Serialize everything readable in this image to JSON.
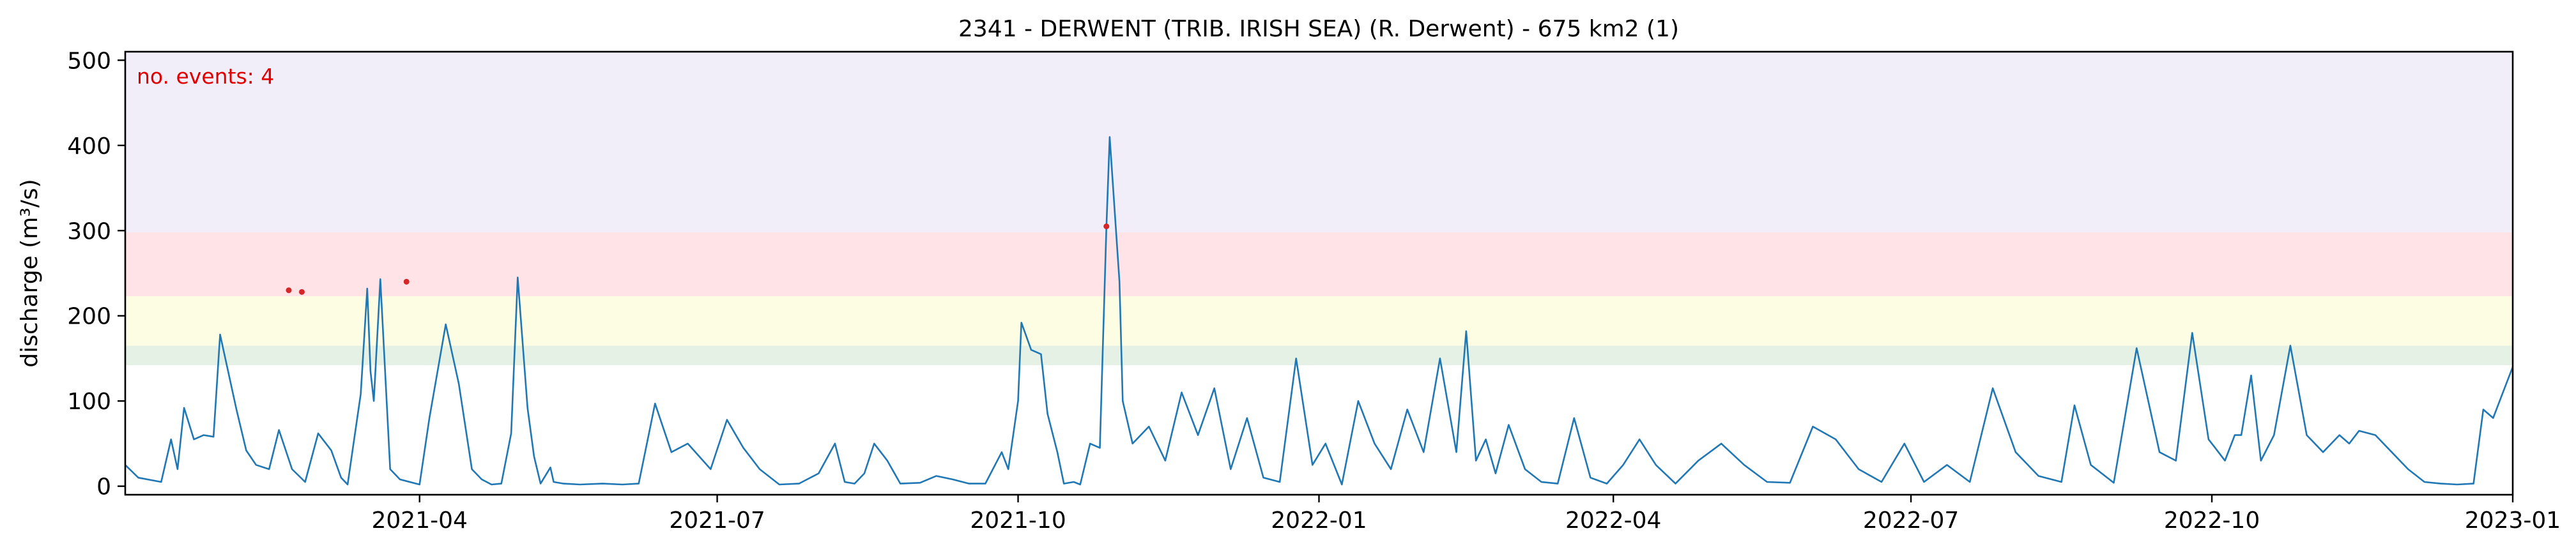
{
  "chart_data": {
    "type": "line",
    "title": "2341 - DERWENT (TRIB. IRISH SEA) (R. Derwent) - 675 km2 (1)",
    "xlabel": "",
    "ylabel": "discharge (m³/s)",
    "annotation": "no. events: 4",
    "xlim": [
      "2021-01-01",
      "2023-01-01"
    ],
    "ylim": [
      -10,
      510
    ],
    "x_ticks": [
      "2021-04",
      "2021-07",
      "2021-10",
      "2022-01",
      "2022-04",
      "2022-07",
      "2022-10",
      "2023-01"
    ],
    "y_ticks": [
      0,
      100,
      200,
      300,
      400,
      500
    ],
    "grid": false,
    "threshold_bands": [
      {
        "from": 142,
        "to": 165,
        "color": "#e4f1e4"
      },
      {
        "from": 165,
        "to": 223,
        "color": "#fdfde3"
      },
      {
        "from": 223,
        "to": 298,
        "color": "#ffe3e6"
      },
      {
        "from": 298,
        "to": 510,
        "color": "#f1eef9"
      }
    ],
    "line_color": "#1f77b4",
    "event_color": "#d62728",
    "series": [
      {
        "x": [
          "2021-01-01",
          "2021-01-05",
          "2021-01-12",
          "2021-01-15",
          "2021-01-17",
          "2021-01-19",
          "2021-01-22",
          "2021-01-25",
          "2021-01-28",
          "2021-01-30",
          "2021-02-04",
          "2021-02-07",
          "2021-02-10",
          "2021-02-14",
          "2021-02-17",
          "2021-02-21",
          "2021-02-25",
          "2021-03-01",
          "2021-03-05",
          "2021-03-08",
          "2021-03-10",
          "2021-03-12",
          "2021-03-14",
          "2021-03-16",
          "2021-03-17",
          "2021-03-18",
          "2021-03-20",
          "2021-03-23",
          "2021-03-26",
          "2021-04-01",
          "2021-04-04",
          "2021-04-09",
          "2021-04-13",
          "2021-04-17",
          "2021-04-20",
          "2021-04-23",
          "2021-04-26",
          "2021-04-29",
          "2021-05-01",
          "2021-05-04",
          "2021-05-06",
          "2021-05-08",
          "2021-05-11",
          "2021-05-12",
          "2021-05-15",
          "2021-05-20",
          "2021-05-27",
          "2021-06-02",
          "2021-06-07",
          "2021-06-12",
          "2021-06-17",
          "2021-06-22",
          "2021-06-29",
          "2021-07-04",
          "2021-07-09",
          "2021-07-14",
          "2021-07-20",
          "2021-07-26",
          "2021-08-01",
          "2021-08-06",
          "2021-08-09",
          "2021-08-12",
          "2021-08-15",
          "2021-08-18",
          "2021-08-22",
          "2021-08-26",
          "2021-09-01",
          "2021-09-06",
          "2021-09-11",
          "2021-09-16",
          "2021-09-21",
          "2021-09-26",
          "2021-09-28",
          "2021-10-01",
          "2021-10-02",
          "2021-10-05",
          "2021-10-08",
          "2021-10-10",
          "2021-10-13",
          "2021-10-15",
          "2021-10-18",
          "2021-10-20",
          "2021-10-23",
          "2021-10-26",
          "2021-10-28",
          "2021-10-29",
          "2021-11-01",
          "2021-11-02",
          "2021-11-05",
          "2021-11-10",
          "2021-11-15",
          "2021-11-20",
          "2021-11-25",
          "2021-11-30",
          "2021-12-05",
          "2021-12-10",
          "2021-12-15",
          "2021-12-20",
          "2021-12-25",
          "2021-12-30",
          "2022-01-03",
          "2022-01-08",
          "2022-01-13",
          "2022-01-18",
          "2022-01-23",
          "2022-01-28",
          "2022-02-02",
          "2022-02-07",
          "2022-02-12",
          "2022-02-15",
          "2022-02-18",
          "2022-02-21",
          "2022-02-24",
          "2022-02-28",
          "2022-03-05",
          "2022-03-10",
          "2022-03-15",
          "2022-03-20",
          "2022-03-25",
          "2022-03-30",
          "2022-04-04",
          "2022-04-09",
          "2022-04-14",
          "2022-04-20",
          "2022-04-27",
          "2022-05-04",
          "2022-05-11",
          "2022-05-18",
          "2022-05-25",
          "2022-06-01",
          "2022-06-08",
          "2022-06-15",
          "2022-06-22",
          "2022-06-29",
          "2022-07-05",
          "2022-07-12",
          "2022-07-19",
          "2022-07-26",
          "2022-08-02",
          "2022-08-09",
          "2022-08-16",
          "2022-08-20",
          "2022-08-25",
          "2022-09-01",
          "2022-09-08",
          "2022-09-15",
          "2022-09-20",
          "2022-09-25",
          "2022-09-30",
          "2022-10-02",
          "2022-10-05",
          "2022-10-08",
          "2022-10-10",
          "2022-10-13",
          "2022-10-16",
          "2022-10-20",
          "2022-10-25",
          "2022-10-30",
          "2022-11-04",
          "2022-11-09",
          "2022-11-12",
          "2022-11-15",
          "2022-11-20",
          "2022-11-25",
          "2022-11-30",
          "2022-12-05",
          "2022-12-10",
          "2022-12-15",
          "2022-12-20",
          "2022-12-23",
          "2022-12-26",
          "2022-12-29",
          "2023-01-01"
        ],
        "y": [
          25,
          10,
          5,
          55,
          20,
          92,
          55,
          60,
          58,
          178,
          90,
          42,
          25,
          20,
          66,
          20,
          5,
          62,
          42,
          10,
          2,
          55,
          108,
          232,
          135,
          100,
          243,
          20,
          8,
          2,
          80,
          190,
          120,
          20,
          8,
          2,
          3,
          62,
          245,
          92,
          35,
          3,
          22,
          5,
          3,
          2,
          3,
          2,
          3,
          97,
          40,
          50,
          20,
          78,
          45,
          20,
          2,
          3,
          15,
          50,
          5,
          3,
          15,
          50,
          30,
          3,
          4,
          12,
          8,
          3,
          3,
          40,
          20,
          100,
          192,
          160,
          155,
          85,
          40,
          3,
          5,
          2,
          50,
          45,
          305,
          410,
          240,
          100,
          50,
          70,
          30,
          110,
          60,
          115,
          20,
          80,
          10,
          5,
          150,
          25,
          50,
          2,
          100,
          50,
          20,
          90,
          40,
          150,
          40,
          182,
          30,
          55,
          15,
          72,
          20,
          5,
          3,
          80,
          10,
          3,
          25,
          55,
          25,
          3,
          30,
          50,
          25,
          5,
          4,
          70,
          55,
          20,
          5,
          50,
          5,
          25,
          5,
          115,
          40,
          12,
          5,
          95,
          25,
          4,
          162,
          40,
          30,
          180,
          55,
          45,
          30,
          60,
          60,
          130,
          30,
          60,
          165,
          60,
          40,
          60,
          50,
          65,
          60,
          40,
          20,
          5,
          3,
          2,
          3,
          90,
          80,
          110,
          140
        ],
        "events": [
          {
            "x": "2021-02-20",
            "y": 230
          },
          {
            "x": "2021-02-24",
            "y": 228
          },
          {
            "x": "2021-03-28",
            "y": 240
          },
          {
            "x": "2021-10-28",
            "y": 305
          }
        ]
      }
    ]
  }
}
